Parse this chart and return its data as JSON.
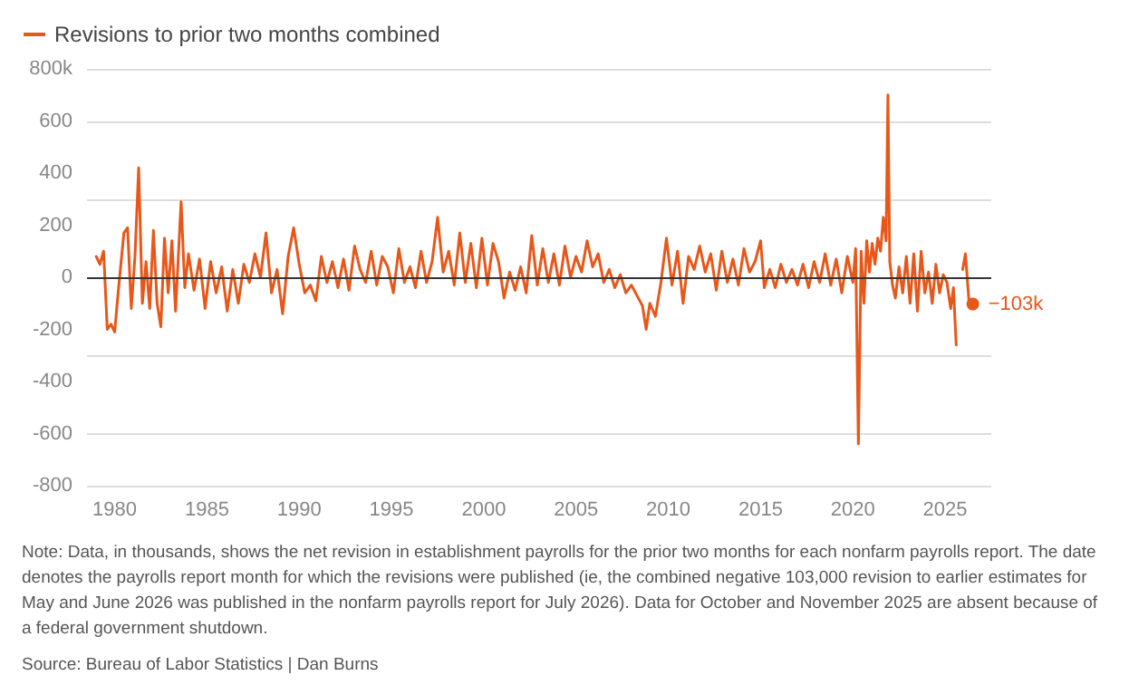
{
  "chart_data": {
    "type": "line",
    "series": [
      {
        "name": "Revisions to prior two months combined",
        "color": "#e8571a",
        "x": [
          1979.0,
          1979.2,
          1979.4,
          1979.6,
          1979.8,
          1980.0,
          1980.2,
          1980.5,
          1980.7,
          1980.9,
          1981.1,
          1981.3,
          1981.5,
          1981.7,
          1981.9,
          1982.1,
          1982.3,
          1982.5,
          1982.7,
          1982.9,
          1983.1,
          1983.3,
          1983.6,
          1983.8,
          1984.0,
          1984.3,
          1984.6,
          1984.9,
          1985.2,
          1985.5,
          1985.8,
          1986.1,
          1986.4,
          1986.7,
          1987.0,
          1987.3,
          1987.6,
          1987.9,
          1988.2,
          1988.5,
          1988.8,
          1989.1,
          1989.4,
          1989.7,
          1990.0,
          1990.3,
          1990.6,
          1990.9,
          1991.2,
          1991.5,
          1991.8,
          1992.1,
          1992.4,
          1992.7,
          1993.0,
          1993.3,
          1993.6,
          1993.9,
          1994.2,
          1994.5,
          1994.8,
          1995.1,
          1995.4,
          1995.7,
          1996.0,
          1996.3,
          1996.6,
          1996.9,
          1997.2,
          1997.5,
          1997.8,
          1998.1,
          1998.4,
          1998.7,
          1999.0,
          1999.3,
          1999.6,
          1999.9,
          2000.2,
          2000.5,
          2000.8,
          2001.1,
          2001.4,
          2001.7,
          2002.0,
          2002.3,
          2002.6,
          2002.9,
          2003.2,
          2003.5,
          2003.8,
          2004.1,
          2004.4,
          2004.7,
          2005.0,
          2005.3,
          2005.6,
          2005.9,
          2006.2,
          2006.5,
          2006.8,
          2007.1,
          2007.4,
          2007.7,
          2008.0,
          2008.3,
          2008.6,
          2008.8,
          2009.0,
          2009.3,
          2009.6,
          2009.9,
          2010.2,
          2010.5,
          2010.8,
          2011.1,
          2011.4,
          2011.7,
          2012.0,
          2012.3,
          2012.6,
          2012.9,
          2013.2,
          2013.5,
          2013.8,
          2014.1,
          2014.4,
          2014.7,
          2015.0,
          2015.2,
          2015.5,
          2015.8,
          2016.1,
          2016.4,
          2016.7,
          2017.0,
          2017.3,
          2017.6,
          2017.9,
          2018.2,
          2018.5,
          2018.8,
          2019.1,
          2019.4,
          2019.7,
          2020.0,
          2020.15,
          2020.3,
          2020.45,
          2020.6,
          2020.75,
          2020.9,
          2021.05,
          2021.2,
          2021.35,
          2021.5,
          2021.65,
          2021.8,
          2021.9,
          2022.0,
          2022.15,
          2022.3,
          2022.5,
          2022.7,
          2022.9,
          2023.1,
          2023.3,
          2023.5,
          2023.7,
          2023.9,
          2024.1,
          2024.3,
          2024.5,
          2024.7,
          2024.9,
          2025.1,
          2025.3,
          2025.45,
          2025.6,
          2025.75,
          2025.95,
          2026.1,
          2026.3,
          2026.5
        ],
        "values": [
          80,
          50,
          100,
          -200,
          -180,
          -210,
          -50,
          170,
          190,
          -120,
          80,
          420,
          -100,
          60,
          -120,
          180,
          -100,
          -190,
          150,
          -60,
          140,
          -130,
          290,
          -40,
          90,
          -50,
          70,
          -120,
          60,
          -60,
          40,
          -130,
          30,
          -100,
          50,
          -20,
          90,
          0,
          170,
          -60,
          30,
          -140,
          80,
          190,
          50,
          -60,
          -30,
          -90,
          80,
          -20,
          60,
          -40,
          70,
          -50,
          120,
          30,
          -20,
          100,
          -30,
          80,
          40,
          -60,
          110,
          -20,
          40,
          -40,
          100,
          -20,
          60,
          230,
          20,
          100,
          -30,
          170,
          -20,
          130,
          -40,
          150,
          -30,
          130,
          60,
          -80,
          20,
          -50,
          40,
          -60,
          160,
          -30,
          110,
          -20,
          90,
          -30,
          120,
          0,
          80,
          20,
          140,
          40,
          90,
          -20,
          30,
          -40,
          10,
          -60,
          -30,
          -70,
          -110,
          -200,
          -100,
          -150,
          -20,
          150,
          -30,
          100,
          -100,
          80,
          30,
          120,
          20,
          90,
          -50,
          100,
          -20,
          70,
          -30,
          110,
          20,
          60,
          140,
          -40,
          30,
          -40,
          50,
          -20,
          30,
          -30,
          50,
          -40,
          60,
          -20,
          90,
          -30,
          70,
          -60,
          80,
          -20,
          110,
          -640,
          100,
          -100,
          140,
          20,
          130,
          50,
          150,
          100,
          230,
          140,
          700,
          60,
          -30,
          -80,
          40,
          -60,
          80,
          -100,
          90,
          -130,
          100,
          -60,
          20,
          -100,
          50,
          -60,
          10,
          -20,
          -120,
          -40,
          -260,
          null,
          30,
          90,
          -100,
          -103
        ]
      }
    ],
    "xlim": [
      1978.5,
      2027.5
    ],
    "xticks": [
      1980,
      1985,
      1990,
      1995,
      2000,
      2005,
      2010,
      2015,
      2020,
      2025
    ],
    "ylim": [
      -800,
      800
    ],
    "yticks": [
      -800,
      -600,
      -400,
      -200,
      0,
      200,
      400,
      600,
      {
        "value": 800,
        "label": "800k"
      }
    ],
    "grid": "y",
    "legend": "top left",
    "marker": "none",
    "line_style": "solid",
    "ref_lines": [
      {
        "axis": "y",
        "value": 0,
        "color": "#333333"
      }
    ],
    "annotations": [
      {
        "text": "−103k",
        "x": 2026.5,
        "y": -103
      },
      "Note: Data, in thousands, shows the net revision in establishment payrolls for the prior two months for each nonfarm payrolls report. The date denotes the payrolls report month for which the revisions were published (ie, the combined negative 103,000 revision to earlier estimates for May and June 2026 was published in the nonfarm payrolls report for July 2026). Data for October and November 2025 are absent because of a federal government shutdown.",
      "Source: Bureau of Labor Statistics | Dan Burns"
    ]
  }
}
